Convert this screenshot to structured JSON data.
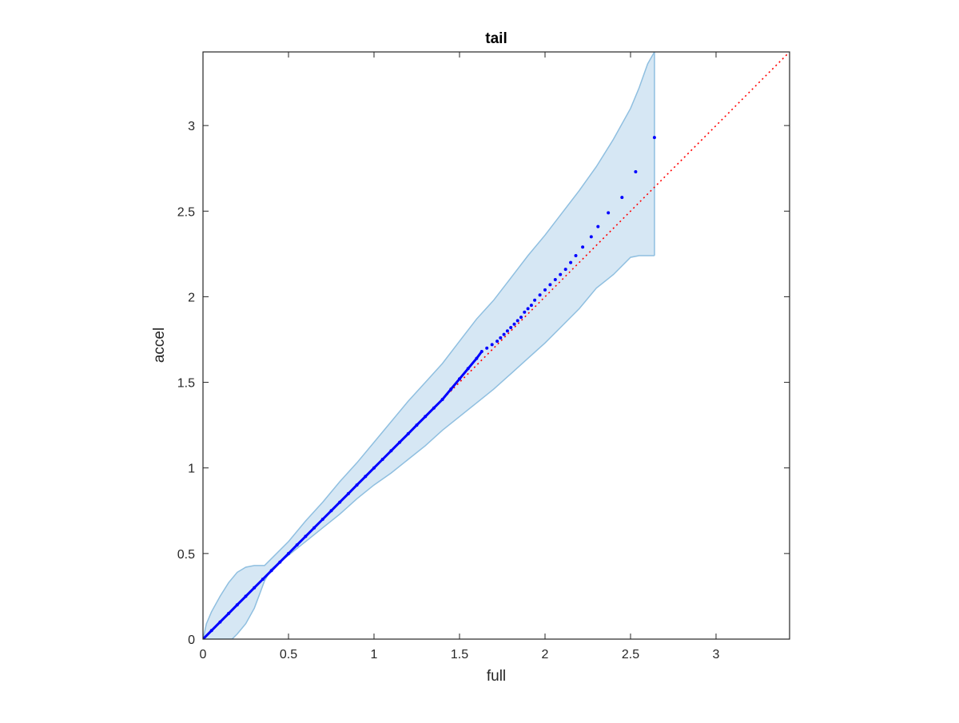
{
  "chart_data": {
    "type": "scatter",
    "title": "tail",
    "xlabel": "full",
    "ylabel": "accel",
    "xlim": [
      0,
      3.43
    ],
    "ylim": [
      0,
      3.43
    ],
    "xticks": [
      0,
      0.5,
      1,
      1.5,
      2,
      2.5,
      3
    ],
    "yticks": [
      0,
      0.5,
      1,
      1.5,
      2,
      2.5,
      3
    ],
    "xtick_labels": [
      "0",
      "0.5",
      "1",
      "1.5",
      "2",
      "2.5",
      "3"
    ],
    "ytick_labels": [
      "0",
      "0.5",
      "1",
      "1.5",
      "2",
      "2.5",
      "3"
    ],
    "grid": false,
    "colors": {
      "points": "#0000ff",
      "reference_line": "#ff0000",
      "band_fill": "#d6e7f4",
      "band_edge": "#8fbfe0",
      "axes": "#262626"
    },
    "reference_line": {
      "style": "dotted",
      "x": [
        0,
        3.43
      ],
      "y": [
        0,
        3.43
      ]
    },
    "series": [
      {
        "type": "scatter",
        "x": [
          0.0,
          0.05,
          0.1,
          0.15,
          0.2,
          0.25,
          0.3,
          0.35,
          0.4,
          0.45,
          0.5,
          0.55,
          0.6,
          0.65,
          0.7,
          0.75,
          0.8,
          0.85,
          0.9,
          0.95,
          1.0,
          1.05,
          1.1,
          1.15,
          1.2,
          1.25,
          1.3,
          1.35,
          1.4,
          1.45,
          1.5,
          1.55,
          1.6,
          1.63,
          1.66,
          1.69,
          1.72,
          1.74,
          1.76,
          1.78,
          1.8,
          1.82,
          1.84,
          1.86,
          1.88,
          1.9,
          1.92,
          1.94,
          1.97,
          2.0,
          2.03,
          2.06,
          2.09,
          2.12,
          2.15,
          2.18,
          2.22,
          2.27,
          2.31,
          2.37,
          2.45,
          2.53,
          2.64
        ],
        "y": [
          0.0,
          0.05,
          0.1,
          0.15,
          0.2,
          0.25,
          0.3,
          0.35,
          0.4,
          0.45,
          0.5,
          0.55,
          0.6,
          0.65,
          0.7,
          0.75,
          0.8,
          0.85,
          0.9,
          0.95,
          1.0,
          1.05,
          1.1,
          1.15,
          1.2,
          1.25,
          1.3,
          1.35,
          1.4,
          1.46,
          1.52,
          1.58,
          1.64,
          1.68,
          1.7,
          1.72,
          1.74,
          1.76,
          1.78,
          1.8,
          1.82,
          1.84,
          1.86,
          1.88,
          1.91,
          1.93,
          1.95,
          1.98,
          2.01,
          2.04,
          2.07,
          2.1,
          2.13,
          2.16,
          2.2,
          2.24,
          2.29,
          2.35,
          2.41,
          2.49,
          2.58,
          2.73,
          2.93
        ]
      }
    ],
    "band": {
      "type": "area",
      "upper": {
        "x": [
          0.0,
          0.02,
          0.05,
          0.1,
          0.15,
          0.2,
          0.25,
          0.3,
          0.33,
          0.36,
          0.4,
          0.5,
          0.6,
          0.7,
          0.8,
          0.9,
          1.0,
          1.1,
          1.2,
          1.3,
          1.4,
          1.5,
          1.6,
          1.7,
          1.8,
          1.9,
          2.0,
          2.1,
          2.2,
          2.3,
          2.4,
          2.5,
          2.55,
          2.6,
          2.64
        ],
        "y": [
          0.0,
          0.09,
          0.16,
          0.25,
          0.33,
          0.39,
          0.42,
          0.43,
          0.43,
          0.43,
          0.47,
          0.57,
          0.69,
          0.8,
          0.92,
          1.03,
          1.15,
          1.27,
          1.39,
          1.5,
          1.61,
          1.74,
          1.87,
          1.98,
          2.11,
          2.24,
          2.36,
          2.49,
          2.62,
          2.76,
          2.92,
          3.1,
          3.22,
          3.36,
          3.43
        ]
      },
      "lower": {
        "x": [
          0.0,
          0.05,
          0.1,
          0.15,
          0.17,
          0.2,
          0.25,
          0.3,
          0.33,
          0.36,
          0.4,
          0.5,
          0.6,
          0.7,
          0.8,
          0.9,
          1.0,
          1.1,
          1.2,
          1.3,
          1.4,
          1.5,
          1.6,
          1.7,
          1.8,
          1.9,
          2.0,
          2.1,
          2.2,
          2.3,
          2.4,
          2.5,
          2.55,
          2.6,
          2.64
        ],
        "y": [
          0.0,
          0.0,
          0.0,
          0.0,
          0.0,
          0.03,
          0.09,
          0.18,
          0.26,
          0.34,
          0.41,
          0.49,
          0.57,
          0.65,
          0.73,
          0.82,
          0.9,
          0.97,
          1.05,
          1.13,
          1.22,
          1.3,
          1.38,
          1.46,
          1.55,
          1.64,
          1.73,
          1.83,
          1.93,
          2.05,
          2.13,
          2.23,
          2.24,
          2.24,
          2.24
        ]
      }
    }
  }
}
